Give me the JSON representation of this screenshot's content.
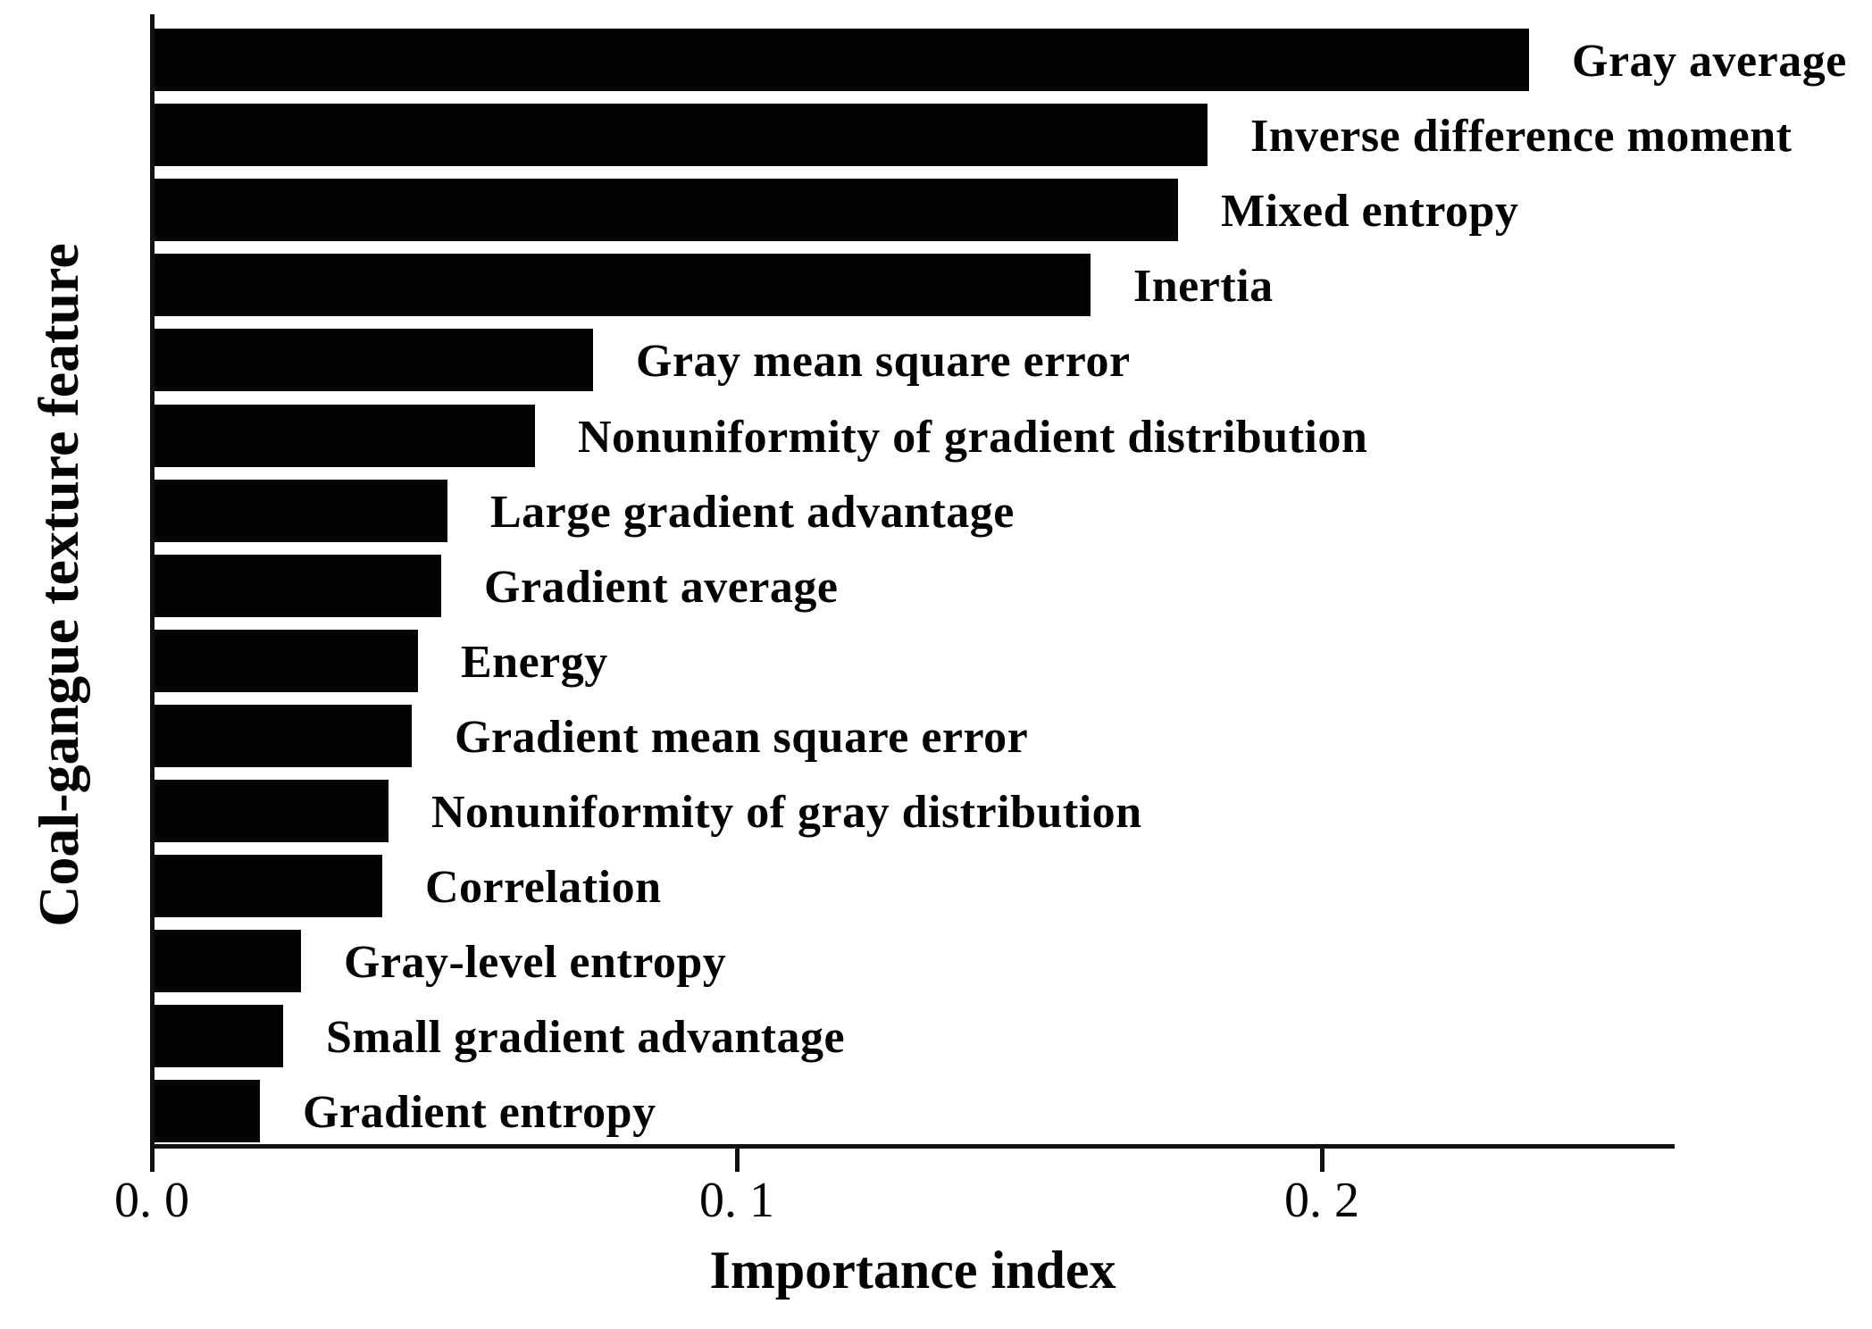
{
  "chart_data": {
    "type": "bar",
    "orientation": "horizontal",
    "title": "",
    "xlabel": "Importance index",
    "ylabel": "Coal-gangue texture feature",
    "xlim": [
      0,
      0.26
    ],
    "grid": false,
    "legend": "none",
    "bar_color": "#030303",
    "background_color": "#ffffff",
    "x_ticks": [
      {
        "value": 0.0,
        "label": "0. 0"
      },
      {
        "value": 0.1,
        "label": "0. 1"
      },
      {
        "value": 0.2,
        "label": "0. 2"
      }
    ],
    "categories": [
      "Gray average",
      "Inverse difference moment",
      "Mixed entropy",
      "Inertia",
      "Gray mean square error",
      "Nonuniformity of gradient distribution",
      "Large gradient advantage",
      "Gradient average",
      "Energy",
      "Gradient mean square error",
      "Nonuniformity of gray distribution",
      "Correlation",
      "Gray-level entropy",
      "Small gradient advantage",
      "Gradient entropy"
    ],
    "values": [
      0.235,
      0.18,
      0.175,
      0.16,
      0.075,
      0.065,
      0.05,
      0.049,
      0.045,
      0.044,
      0.04,
      0.039,
      0.025,
      0.022,
      0.018
    ]
  }
}
